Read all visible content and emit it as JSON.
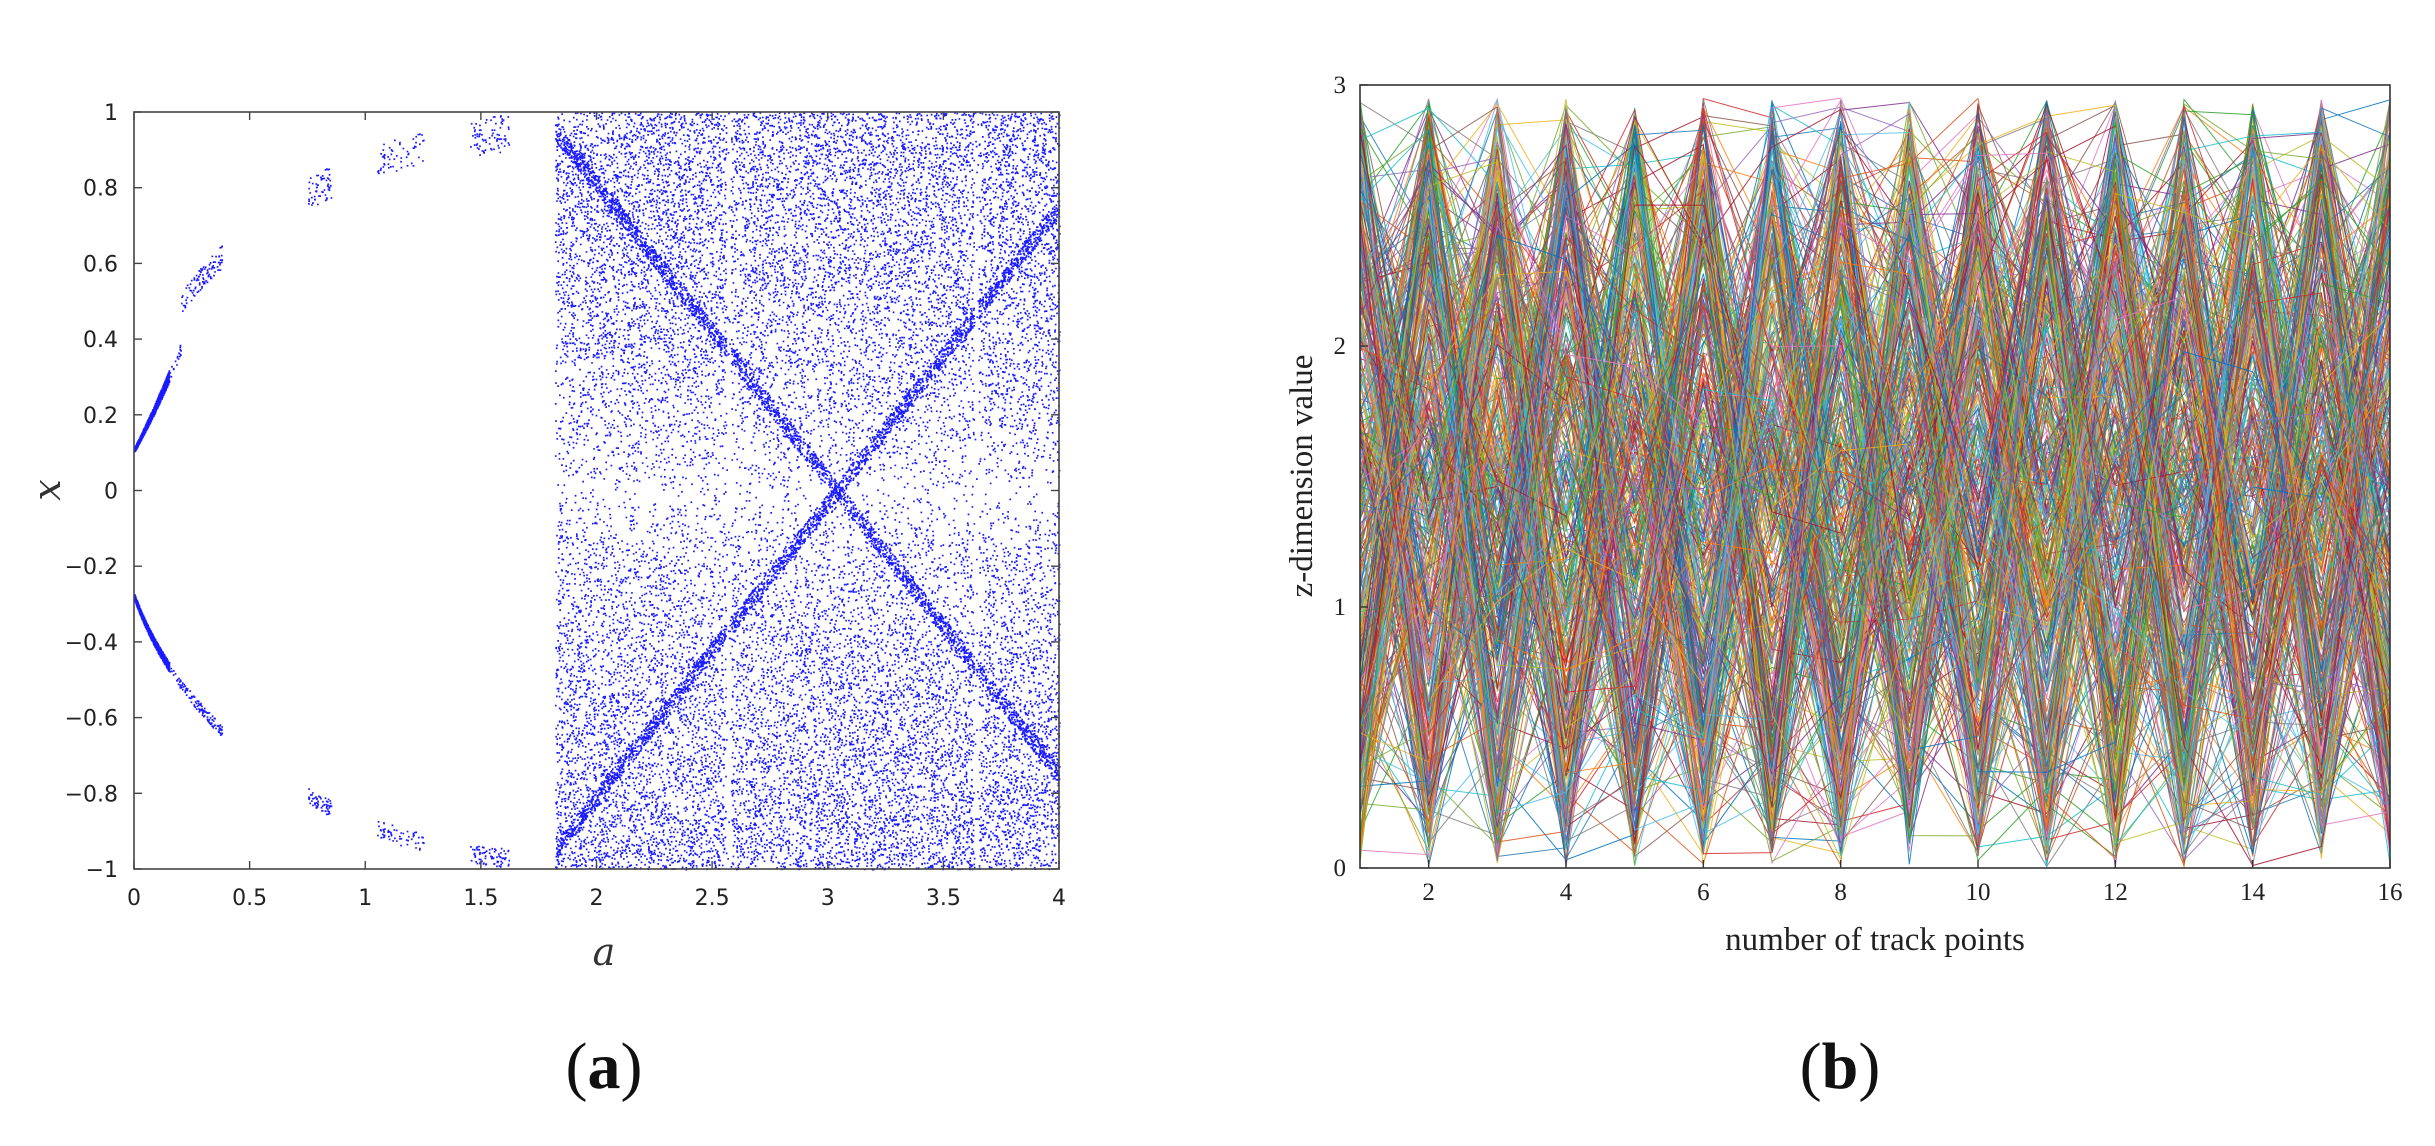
{
  "chart_data": [
    {
      "type": "scatter",
      "panel_label_open": "(",
      "panel_label_letter": "a",
      "panel_label_close": ")",
      "xlabel": "a",
      "ylabel": "x",
      "xlim": [
        0,
        4
      ],
      "ylim": [
        -1,
        1
      ],
      "xticks": [
        "0",
        "0.5",
        "1",
        "1.5",
        "2",
        "2.5",
        "3",
        "3.5",
        "4"
      ],
      "yticks": [
        "1",
        "0.8",
        "0.6",
        "0.4",
        "0.2",
        "0",
        "−0.2",
        "−0.4",
        "−0.6",
        "−0.8",
        "−1"
      ],
      "grid": false,
      "marker_color": "#1a1aff",
      "series": [
        {
          "description_values": "bifurcation diagram",
          "x_range": [
            0,
            4
          ],
          "y_range": [
            -1,
            1
          ],
          "regular_region_x": [
            0,
            1.82
          ],
          "chaotic_region_x": [
            1.82,
            4
          ],
          "periodic_windows_x": [
            2.57,
            3.64
          ]
        }
      ]
    },
    {
      "type": "line",
      "panel_label_open": "(",
      "panel_label_letter": "b",
      "panel_label_close": ")",
      "xlabel": "number of track points",
      "ylabel": "z-dimension value",
      "xlim": [
        1,
        16
      ],
      "ylim": [
        0,
        3
      ],
      "xticks": [
        "2",
        "4",
        "6",
        "8",
        "10",
        "12",
        "14",
        "16"
      ],
      "yticks": [
        "3",
        "2",
        "1",
        "0"
      ],
      "x": [
        1,
        2,
        3,
        4,
        5,
        6,
        7,
        8,
        9,
        10,
        11,
        12,
        13,
        14,
        15,
        16
      ],
      "grid": false,
      "line_count": 420,
      "y_range": [
        0,
        3
      ],
      "palette": [
        "#1f77b4",
        "#ff7f0e",
        "#2ca02c",
        "#d62728",
        "#9467bd",
        "#8c564b",
        "#e377c2",
        "#17becf",
        "#bcbd22",
        "#7f7f7f",
        "#0072bd",
        "#d95319",
        "#edb120",
        "#7e2f8e",
        "#77ac30",
        "#4dbeee",
        "#a2142f"
      ]
    }
  ]
}
